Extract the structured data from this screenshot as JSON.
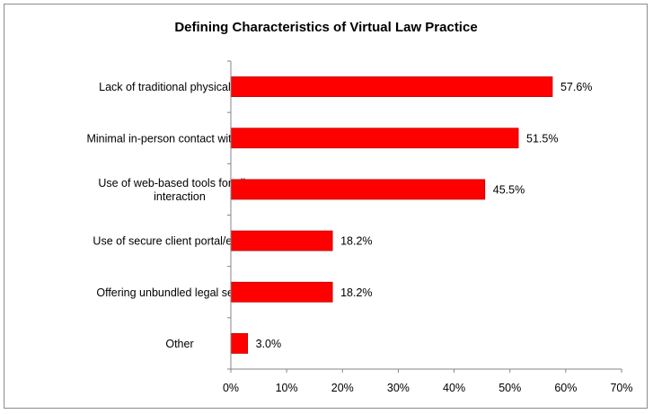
{
  "chart_data": {
    "type": "bar",
    "orientation": "horizontal",
    "title": "Defining Characteristics of Virtual Law Practice",
    "categories": [
      "Lack of traditional physical office",
      "Minimal in-person contact with clients",
      "Use of web-based tools for client interaction",
      "Use of secure client portal/extranet",
      "Offering unbundled legal services",
      "Other"
    ],
    "category_lines": [
      [
        "Lack of traditional physical office"
      ],
      [
        "Minimal in-person contact with clients"
      ],
      [
        "Use of web-based tools for client",
        "interaction"
      ],
      [
        "Use of secure client portal/extranet"
      ],
      [
        "Offering unbundled legal services"
      ],
      [
        "Other"
      ]
    ],
    "values": [
      57.6,
      51.5,
      45.5,
      18.2,
      18.2,
      3.0
    ],
    "data_labels": [
      "57.6%",
      "51.5%",
      "45.5%",
      "18.2%",
      "18.2%",
      "3.0%"
    ],
    "xlim": [
      0,
      70
    ],
    "x_ticks": [
      0,
      10,
      20,
      30,
      40,
      50,
      60,
      70
    ],
    "x_tick_labels": [
      "0%",
      "10%",
      "20%",
      "30%",
      "40%",
      "50%",
      "60%",
      "70%"
    ],
    "grid": false,
    "legend": "none",
    "bar_color": "#ff0000",
    "bar_edge_color": "#c00000"
  }
}
